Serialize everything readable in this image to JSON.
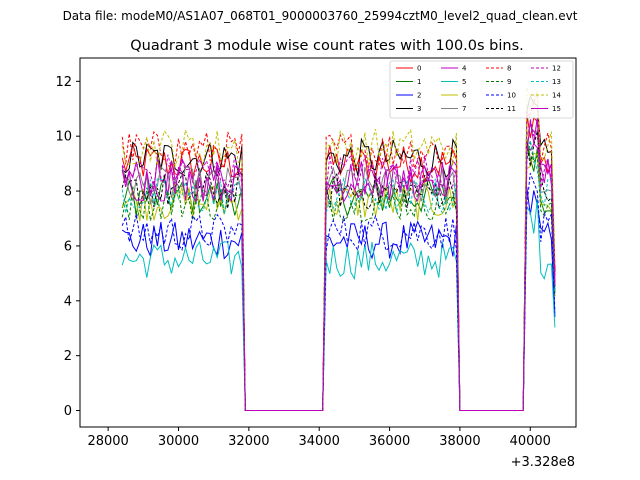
{
  "chart_data": {
    "type": "line",
    "suptitle": "Data file: modeM0/AS1A07_068T01_9000003760_25994cztM0_level2_quad_clean.evt",
    "title": "Quadrant 3 module wise count rates with 100.0s bins.",
    "xlabel": "",
    "ylabel": "",
    "x_offset_label": "+3.328e8",
    "xlim": [
      27200,
      41300
    ],
    "ylim": [
      -0.6,
      12.85
    ],
    "x_ticks": [
      28000,
      30000,
      32000,
      34000,
      36000,
      38000,
      40000
    ],
    "x_tick_labels": [
      "28000",
      "30000",
      "32000",
      "34000",
      "36000",
      "38000",
      "40000"
    ],
    "y_ticks": [
      0,
      2,
      4,
      6,
      8,
      10,
      12
    ],
    "y_tick_labels": [
      "0",
      "2",
      "4",
      "6",
      "8",
      "10",
      "12"
    ],
    "grid": false,
    "legend_position": "top-right",
    "bin_start": 28400,
    "bin_width": 100,
    "bin_end": 40700,
    "segments": [
      [
        28400,
        31800
      ],
      [
        34200,
        37900
      ],
      [
        39900,
        40700
      ]
    ],
    "series": [
      {
        "name": "0",
        "color": "#ff0000",
        "dash": "solid",
        "level": 9.0
      },
      {
        "name": "1",
        "color": "#008000",
        "dash": "solid",
        "level": 7.8
      },
      {
        "name": "2",
        "color": "#0000ff",
        "dash": "solid",
        "level": 6.2
      },
      {
        "name": "3",
        "color": "#000000",
        "dash": "solid",
        "level": 9.2
      },
      {
        "name": "4",
        "color": "#bf00bf",
        "dash": "solid",
        "level": 8.5
      },
      {
        "name": "5",
        "color": "#00bfbf",
        "dash": "solid",
        "level": 5.5
      },
      {
        "name": "6",
        "color": "#bfbf00",
        "dash": "solid",
        "level": 7.6
      },
      {
        "name": "7",
        "color": "#808080",
        "dash": "solid",
        "level": 8.2
      },
      {
        "name": "8",
        "color": "#ff0000",
        "dash": "dashed",
        "level": 9.5
      },
      {
        "name": "9",
        "color": "#008000",
        "dash": "dashed",
        "level": 7.6
      },
      {
        "name": "10",
        "color": "#0000ff",
        "dash": "dashed",
        "level": 6.5
      },
      {
        "name": "11",
        "color": "#000000",
        "dash": "dashed",
        "level": 8.0
      },
      {
        "name": "12",
        "color": "#bf00bf",
        "dash": "dashed",
        "level": 8.7
      },
      {
        "name": "13",
        "color": "#00bfbf",
        "dash": "dashed",
        "level": 7.8
      },
      {
        "name": "14",
        "color": "#bfbf00",
        "dash": "dashed",
        "level": 9.6
      },
      {
        "name": "15",
        "color": "#bf00bf",
        "dash": "solid",
        "level": 8.3
      }
    ]
  }
}
